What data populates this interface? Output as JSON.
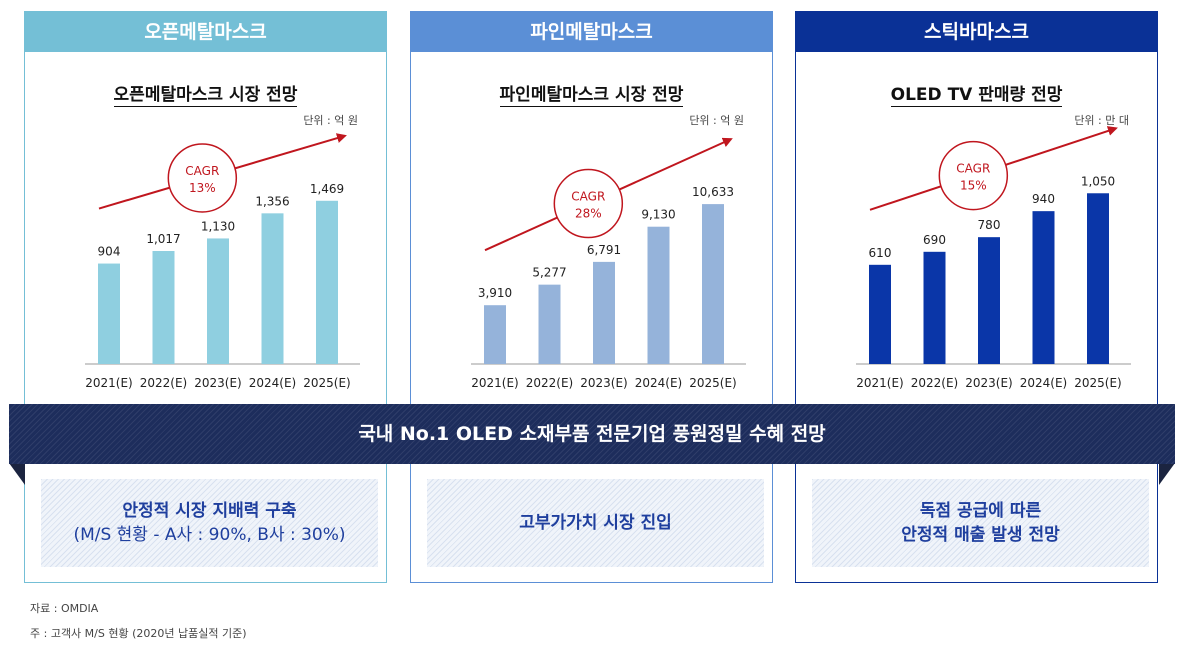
{
  "panels": [
    {
      "header": "오픈메탈마스크",
      "bottom_lines": [
        "안정적 시장 지배력 구축",
        "(M/S 현황 - A사 : 90%, B사 : 30%)"
      ],
      "cagr_label": "CAGR",
      "cagr_value": "13%",
      "color": "#8fcfe0"
    },
    {
      "header": "파인메탈마스크",
      "bottom_lines": [
        "고부가가치 시장 진입"
      ],
      "cagr_label": "CAGR",
      "cagr_value": "28%",
      "color": "#95b3da"
    },
    {
      "header": "스틱바마스크",
      "bottom_lines": [
        "독점 공급에 따른",
        "안정적 매출 발생 전망"
      ],
      "cagr_label": "CAGR",
      "cagr_value": "15%",
      "color": "#0a36a8"
    }
  ],
  "chart_data": [
    {
      "type": "bar",
      "title": "오픈메탈마스크 시장 전망",
      "unit": "단위 : 억 원",
      "categories": [
        "2021(E)",
        "2022(E)",
        "2023(E)",
        "2024(E)",
        "2025(E)"
      ],
      "values": [
        904,
        1017,
        1130,
        1356,
        1469
      ],
      "labels": [
        "904",
        "1,017",
        "1,130",
        "1,356",
        "1,469"
      ],
      "ylim": [
        0,
        1800
      ]
    },
    {
      "type": "bar",
      "title": "파인메탈마스크 시장 전망",
      "unit": "단위 : 억 원",
      "categories": [
        "2021(E)",
        "2022(E)",
        "2023(E)",
        "2024(E)",
        "2025(E)"
      ],
      "values": [
        3910,
        5277,
        6791,
        9130,
        10633
      ],
      "labels": [
        "3,910",
        "5,277",
        "6,791",
        "9,130",
        "10,633"
      ],
      "ylim": [
        0,
        13300
      ]
    },
    {
      "type": "bar",
      "title": "OLED TV 판매량 전망",
      "unit": "단위 : 만 대",
      "categories": [
        "2021(E)",
        "2022(E)",
        "2023(E)",
        "2024(E)",
        "2025(E)"
      ],
      "values": [
        610,
        690,
        780,
        940,
        1050
      ],
      "labels": [
        "610",
        "690",
        "780",
        "940",
        "1,050"
      ],
      "ylim": [
        0,
        1230
      ]
    }
  ],
  "banner": "국내 No.1 OLED 소재부품 전문기업 풍원정밀 수혜 전망",
  "notes": {
    "source": "자료 : OMDIA",
    "footnote": "주 : 고객사 M/S 현황 (2020년 납품실적 기준)"
  }
}
